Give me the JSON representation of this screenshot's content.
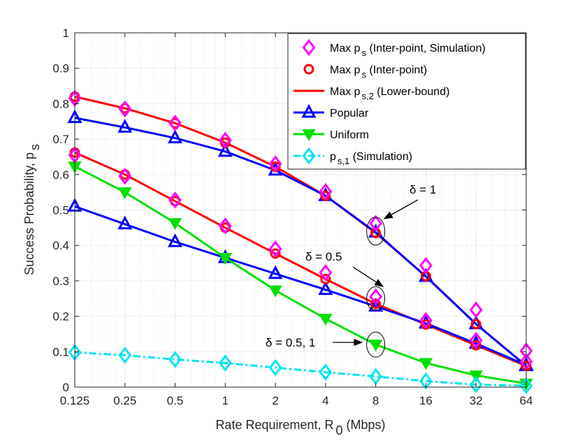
{
  "chart_data": {
    "type": "line",
    "xlabel": "Rate Requirement, R",
    "xlabel_sub": "0",
    "xlabel_unit": " (Mbps)",
    "ylabel": "Success Probability, p",
    "ylabel_sub": "s",
    "categories": [
      "0.125",
      "0.25",
      "0.5",
      "1",
      "2",
      "4",
      "8",
      "16",
      "32",
      "64"
    ],
    "x": [
      0.125,
      0.25,
      0.5,
      1,
      2,
      4,
      8,
      16,
      32,
      64
    ],
    "xscale": "log2",
    "ylim": [
      0,
      1
    ],
    "yticks": [
      "0",
      "0.1",
      "0.2",
      "0.3",
      "0.4",
      "0.5",
      "0.6",
      "0.7",
      "0.8",
      "0.9",
      "1"
    ],
    "grid": "dotted",
    "legend_position": "top-right",
    "series": [
      {
        "name": "Max p_s (Inter-point, Simulation)",
        "legend_main": "Max p",
        "legend_sub": "s",
        "legend_rest": " (Inter-point, Simulation)",
        "color": "#ff00ff",
        "marker": "diamond",
        "line": "none",
        "group": "delta=1",
        "values": [
          0.815,
          0.785,
          0.745,
          0.697,
          0.63,
          0.552,
          0.462,
          0.343,
          0.218,
          0.102
        ]
      },
      {
        "name": "Max p_s (Inter-point)",
        "legend_main": "Max p",
        "legend_sub": "s",
        "legend_rest": " (Inter-point)",
        "color": "#ff0000",
        "marker": "circle",
        "line": "none",
        "group": "delta=1",
        "values": [
          0.82,
          0.787,
          0.745,
          0.69,
          0.622,
          0.54,
          0.435,
          0.313,
          0.178,
          0.06
        ]
      },
      {
        "name": "Max p_s,2 (Lower-bound)",
        "legend_main": "Max p",
        "legend_sub": "s,2",
        "legend_rest": " (Lower-bound)",
        "color": "#ff0000",
        "marker": "none",
        "line": "solid",
        "group": "delta=1",
        "values": [
          0.82,
          0.787,
          0.745,
          0.69,
          0.622,
          0.54,
          0.435,
          0.313,
          0.178,
          0.06
        ]
      },
      {
        "name": "Popular",
        "legend_main": "Popular",
        "legend_sub": "",
        "legend_rest": "",
        "color": "#0000ff",
        "marker": "triangle-up",
        "line": "solid",
        "group": "delta=1",
        "values": [
          0.76,
          0.733,
          0.703,
          0.665,
          0.612,
          0.54,
          0.437,
          0.312,
          0.178,
          0.06
        ]
      },
      {
        "name": "Max p_s (Inter-point, Simulation) delta 0.5",
        "legend_main": "",
        "legend_sub": "",
        "legend_rest": "",
        "color": "#ff00ff",
        "marker": "diamond",
        "line": "none",
        "group": "delta=0.5",
        "values": [
          0.655,
          0.595,
          0.528,
          0.455,
          0.39,
          0.323,
          0.255,
          0.188,
          0.132,
          0.072
        ]
      },
      {
        "name": "Max p_s (Inter-point) delta 0.5",
        "legend_main": "",
        "legend_sub": "",
        "legend_rest": "",
        "color": "#ff0000",
        "marker": "circle",
        "line": "none",
        "group": "delta=0.5",
        "values": [
          0.662,
          0.6,
          0.525,
          0.45,
          0.377,
          0.305,
          0.235,
          0.177,
          0.118,
          0.06
        ]
      },
      {
        "name": "Max p_s,2 (Lower-bound) delta 0.5",
        "legend_main": "",
        "legend_sub": "",
        "legend_rest": "",
        "color": "#ff0000",
        "marker": "none",
        "line": "solid",
        "group": "delta=0.5",
        "values": [
          0.662,
          0.6,
          0.525,
          0.45,
          0.377,
          0.305,
          0.235,
          0.177,
          0.118,
          0.06
        ]
      },
      {
        "name": "Popular delta 0.5",
        "legend_main": "",
        "legend_sub": "",
        "legend_rest": "",
        "color": "#0000ff",
        "marker": "triangle-up",
        "line": "solid",
        "group": "delta=0.5",
        "values": [
          0.51,
          0.46,
          0.41,
          0.365,
          0.32,
          0.275,
          0.228,
          0.18,
          0.123,
          0.062
        ]
      },
      {
        "name": "Uniform",
        "legend_main": "Uniform",
        "legend_sub": "",
        "legend_rest": "",
        "color": "#00e000",
        "marker": "triangle-down",
        "line": "solid",
        "group": "delta=0.5, 1",
        "values": [
          0.623,
          0.55,
          0.463,
          0.365,
          0.273,
          0.193,
          0.12,
          0.068,
          0.033,
          0.01
        ]
      },
      {
        "name": "p_s,1 (Simulation)",
        "legend_main": "p",
        "legend_sub": "s,1",
        "legend_rest": " (Simulation)",
        "color": "#00e5ee",
        "marker": "diamond",
        "line": "dashdot",
        "group": "all",
        "values": [
          0.098,
          0.09,
          0.078,
          0.068,
          0.055,
          0.042,
          0.03,
          0.017,
          0.007,
          0.004
        ]
      }
    ],
    "annotations": [
      {
        "text": "δ = 1",
        "x": 8,
        "y": 0.44
      },
      {
        "text": "δ = 0.5",
        "x": 8,
        "y": 0.245
      },
      {
        "text": "δ = 0.5, 1",
        "x": 8,
        "y": 0.12
      }
    ]
  }
}
